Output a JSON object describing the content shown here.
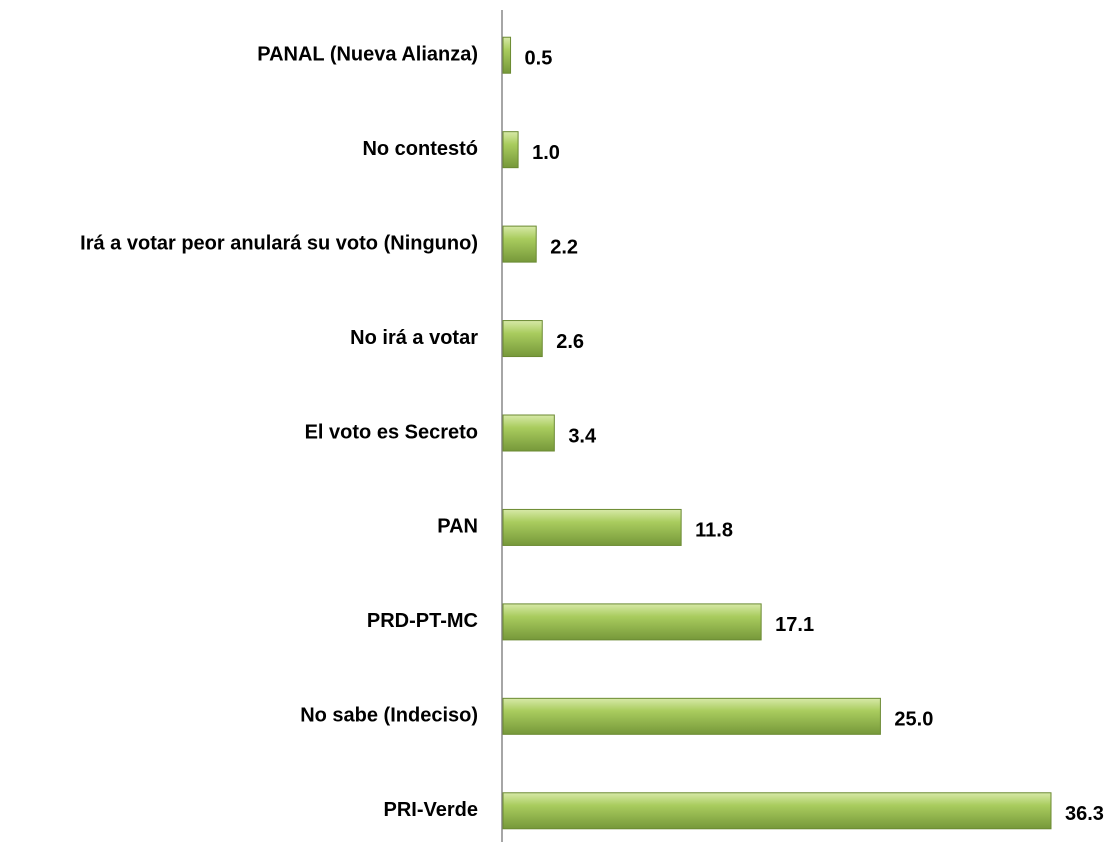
{
  "chart_data": {
    "type": "barh",
    "categories": [
      "PANAL (Nueva Alianza)",
      "No contestó",
      "Irá a votar peor anulará su voto (Ninguno)",
      "No irá a votar",
      "El voto es Secreto",
      "PAN",
      "PRD-PT-MC",
      "No sabe (Indeciso)",
      "PRI-Verde"
    ],
    "values": [
      0.5,
      1,
      2.2,
      2.6,
      3.4,
      11.8,
      17.1,
      25,
      36.3
    ],
    "value_labels": [
      "0.5",
      "1.0",
      "2.2",
      "2.6",
      "3.4",
      "11.8",
      "17.1",
      "25.0",
      "36.3"
    ],
    "color": "#9bbb59"
  }
}
